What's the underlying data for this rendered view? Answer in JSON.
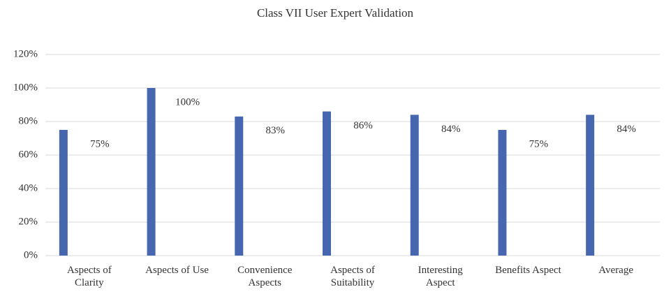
{
  "chart_data": {
    "type": "bar",
    "title": "Class VII User Expert Validation",
    "categories": [
      "Aspects of Clarity",
      "Aspects of Use",
      "Convenience Aspects",
      "Aspects of Suitability",
      "Interesting Aspect",
      "Benefits Aspect",
      "Average"
    ],
    "values": [
      75,
      100,
      83,
      86,
      84,
      75,
      84
    ],
    "value_labels": [
      "75%",
      "100%",
      "83%",
      "86%",
      "84%",
      "75%",
      "84%"
    ],
    "color": "#4666b0",
    "ylim": [
      0,
      120
    ],
    "yticks": [
      {
        "value": 0,
        "label": "0%"
      },
      {
        "value": 20,
        "label": "20%"
      },
      {
        "value": 40,
        "label": "40%"
      },
      {
        "value": 60,
        "label": "60%"
      },
      {
        "value": 80,
        "label": "80%"
      },
      {
        "value": 100,
        "label": "100%"
      },
      {
        "value": 120,
        "label": "120%"
      }
    ],
    "grid": true
  }
}
